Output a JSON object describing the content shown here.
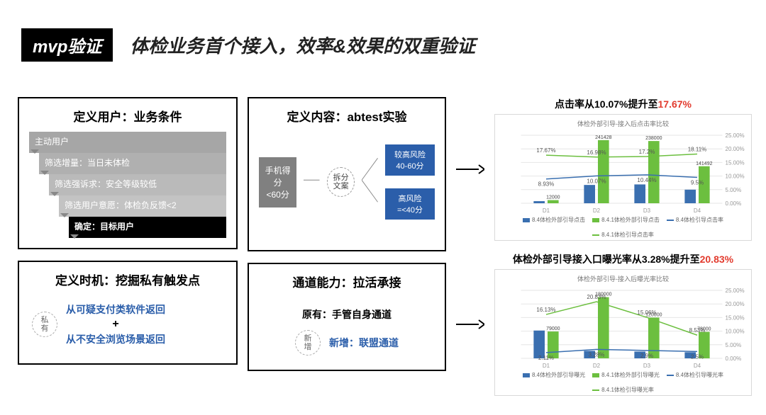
{
  "header": {
    "badge": "mvp验证",
    "title": "体检业务首个接入，效率&效果的双重验证"
  },
  "panel_user": {
    "title": "定义用户：业务条件",
    "funnel": [
      "主动用户",
      "筛选增量：当日未体检",
      "筛选强诉求：安全等级较低",
      "筛选用户意愿：体检负反馈<2",
      "确定：目标用户"
    ]
  },
  "panel_content": {
    "title": "定义内容：abtest实验",
    "start": "手机得分\n<60分",
    "split": "拆分\n文案",
    "high": "较高风险\n40-60分",
    "risk": "高风险\n=<40分"
  },
  "panel_timing": {
    "title": "定义时机：挖掘私有触发点",
    "tag": "私\n有",
    "line1": "从可疑支付类软件返回",
    "plus": "+",
    "line2": "从不安全浏览场景返回"
  },
  "panel_channel": {
    "title": "通道能力：拉活承接",
    "row1": "原有：手管自身通道",
    "tag": "新\n增",
    "row2": "新增：联盟通道"
  },
  "chart1": {
    "title_prefix": "点击率从10.07%提升至",
    "title_hl": "17.67%",
    "inner_title": "体检外部引导-接入后点击率比较",
    "type": "bar+line",
    "categories": [
      "D1",
      "D2",
      "D3",
      "D4"
    ],
    "bars_blue": [
      8000,
      70000,
      72000,
      52000
    ],
    "bars_green": [
      12000,
      241428,
      238000,
      141492
    ],
    "line_blue_pct": [
      8.93,
      10.07,
      10.44,
      9.5
    ],
    "line_green_pct": [
      17.67,
      16.98,
      17.2,
      18.11
    ],
    "y1_max": 260000,
    "y2_max": 25,
    "y2_ticks": [
      0,
      5,
      10,
      15,
      20,
      25
    ],
    "colors": {
      "blue": "#3a6fb0",
      "green": "#6cbf3f",
      "grid": "#e6e6e6"
    },
    "legend": [
      "8.4体检外部引导点击",
      "8.4.1体检外部引导点击",
      "8.4体检引导点击率",
      "8.4.1体检引导点击率"
    ]
  },
  "chart2": {
    "title_prefix": "体检外部引导接入口曝光率从3.28%提升至",
    "title_hl": "20.83%",
    "inner_title": "体检外部引导-接入后曝光率比较",
    "type": "bar+line",
    "categories": [
      "D1",
      "D2",
      "D3",
      "D4"
    ],
    "bars_blue": [
      81813,
      22000,
      20000,
      18000
    ],
    "bars_green": [
      79000,
      180000,
      120000,
      78000
    ],
    "line_blue_pct": [
      2.11,
      3.28,
      2.9,
      2.5
    ],
    "line_green_pct": [
      16.13,
      20.83,
      15.06,
      8.53
    ],
    "y1_max": 200000,
    "y2_max": 25,
    "y2_ticks": [
      0,
      5,
      10,
      15,
      20,
      25
    ],
    "colors": {
      "blue": "#3a6fb0",
      "green": "#6cbf3f",
      "grid": "#e6e6e6"
    },
    "legend": [
      "8.4体检外部引导曝光",
      "8.4.1体检外部引导曝光",
      "8.4体检引导曝光率",
      "8.4.1体检引导曝光率"
    ]
  }
}
